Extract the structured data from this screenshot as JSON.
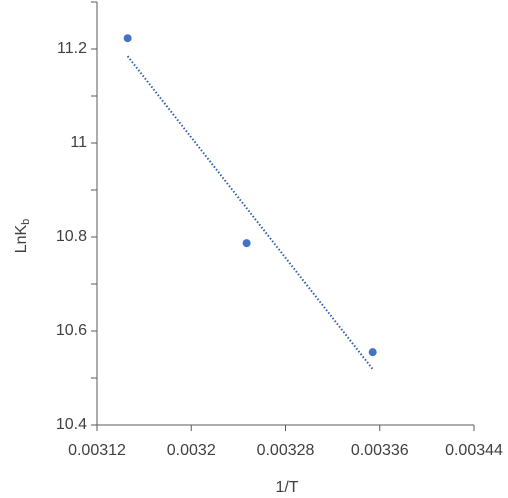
{
  "chart_data": {
    "type": "scatter",
    "xlabel": "1/T",
    "ylabel": "LnK",
    "ylabel_subscript": "b",
    "series": [
      {
        "name": "LnKb",
        "color": "#4472c4",
        "x": [
          0.003146,
          0.003247,
          0.003354
        ],
        "values": [
          11.223,
          10.787,
          10.555
        ]
      }
    ],
    "trendline": {
      "type": "linear",
      "color": "#2e5fa8"
    },
    "xlim": [
      0.00312,
      0.00344
    ],
    "xticks": [
      0.00312,
      0.0032,
      0.00328,
      0.00336,
      0.00344
    ],
    "ylim": [
      10.4,
      11.3
    ],
    "yticks": [
      10.4,
      10.6,
      10.8,
      11,
      11.2
    ],
    "yminorticks": [
      10.5,
      10.7,
      10.9,
      11.1,
      11.3
    ]
  }
}
